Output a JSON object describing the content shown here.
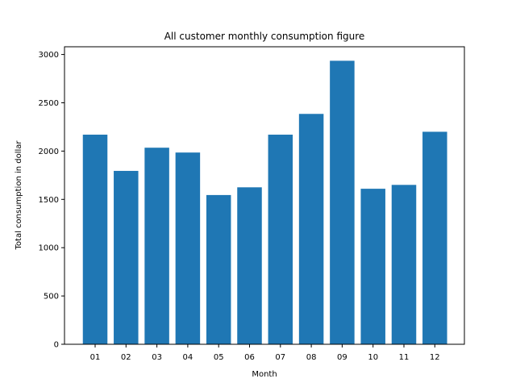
{
  "chart_data": {
    "type": "bar",
    "title": "All customer monthly consumption figure",
    "xlabel": "Month",
    "ylabel": "Total consumption in dollar",
    "categories": [
      "01",
      "02",
      "03",
      "04",
      "05",
      "06",
      "07",
      "08",
      "09",
      "10",
      "11",
      "12"
    ],
    "values": [
      2170,
      1795,
      2035,
      1985,
      1545,
      1625,
      2170,
      2385,
      2935,
      1610,
      1650,
      2200
    ],
    "ylim": [
      0,
      3080
    ],
    "yticks": [
      0,
      500,
      1000,
      1500,
      2000,
      2500,
      3000
    ],
    "ytick_labels": [
      "0",
      "500",
      "1000",
      "1500",
      "2000",
      "2500",
      "3000"
    ],
    "bar_color": "#1f77b4",
    "grid": false,
    "legend": "none"
  }
}
